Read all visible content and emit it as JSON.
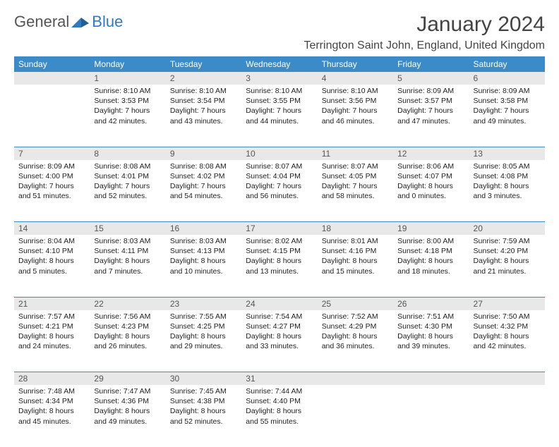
{
  "logo": {
    "text1": "General",
    "text2": "Blue"
  },
  "title": "January 2024",
  "location": "Terrington Saint John, England, United Kingdom",
  "colors": {
    "header_bg": "#3b8bc9",
    "header_text": "#ffffff",
    "daynum_bg": "#e8e8e8",
    "rule": "#3b8bc9",
    "logo_blue": "#2f7ac0"
  },
  "day_headers": [
    "Sunday",
    "Monday",
    "Tuesday",
    "Wednesday",
    "Thursday",
    "Friday",
    "Saturday"
  ],
  "weeks": [
    [
      {
        "num": "",
        "lines": []
      },
      {
        "num": "1",
        "lines": [
          "Sunrise: 8:10 AM",
          "Sunset: 3:53 PM",
          "Daylight: 7 hours and 42 minutes."
        ]
      },
      {
        "num": "2",
        "lines": [
          "Sunrise: 8:10 AM",
          "Sunset: 3:54 PM",
          "Daylight: 7 hours and 43 minutes."
        ]
      },
      {
        "num": "3",
        "lines": [
          "Sunrise: 8:10 AM",
          "Sunset: 3:55 PM",
          "Daylight: 7 hours and 44 minutes."
        ]
      },
      {
        "num": "4",
        "lines": [
          "Sunrise: 8:10 AM",
          "Sunset: 3:56 PM",
          "Daylight: 7 hours and 46 minutes."
        ]
      },
      {
        "num": "5",
        "lines": [
          "Sunrise: 8:09 AM",
          "Sunset: 3:57 PM",
          "Daylight: 7 hours and 47 minutes."
        ]
      },
      {
        "num": "6",
        "lines": [
          "Sunrise: 8:09 AM",
          "Sunset: 3:58 PM",
          "Daylight: 7 hours and 49 minutes."
        ]
      }
    ],
    [
      {
        "num": "7",
        "lines": [
          "Sunrise: 8:09 AM",
          "Sunset: 4:00 PM",
          "Daylight: 7 hours and 51 minutes."
        ]
      },
      {
        "num": "8",
        "lines": [
          "Sunrise: 8:08 AM",
          "Sunset: 4:01 PM",
          "Daylight: 7 hours and 52 minutes."
        ]
      },
      {
        "num": "9",
        "lines": [
          "Sunrise: 8:08 AM",
          "Sunset: 4:02 PM",
          "Daylight: 7 hours and 54 minutes."
        ]
      },
      {
        "num": "10",
        "lines": [
          "Sunrise: 8:07 AM",
          "Sunset: 4:04 PM",
          "Daylight: 7 hours and 56 minutes."
        ]
      },
      {
        "num": "11",
        "lines": [
          "Sunrise: 8:07 AM",
          "Sunset: 4:05 PM",
          "Daylight: 7 hours and 58 minutes."
        ]
      },
      {
        "num": "12",
        "lines": [
          "Sunrise: 8:06 AM",
          "Sunset: 4:07 PM",
          "Daylight: 8 hours and 0 minutes."
        ]
      },
      {
        "num": "13",
        "lines": [
          "Sunrise: 8:05 AM",
          "Sunset: 4:08 PM",
          "Daylight: 8 hours and 3 minutes."
        ]
      }
    ],
    [
      {
        "num": "14",
        "lines": [
          "Sunrise: 8:04 AM",
          "Sunset: 4:10 PM",
          "Daylight: 8 hours and 5 minutes."
        ]
      },
      {
        "num": "15",
        "lines": [
          "Sunrise: 8:03 AM",
          "Sunset: 4:11 PM",
          "Daylight: 8 hours and 7 minutes."
        ]
      },
      {
        "num": "16",
        "lines": [
          "Sunrise: 8:03 AM",
          "Sunset: 4:13 PM",
          "Daylight: 8 hours and 10 minutes."
        ]
      },
      {
        "num": "17",
        "lines": [
          "Sunrise: 8:02 AM",
          "Sunset: 4:15 PM",
          "Daylight: 8 hours and 13 minutes."
        ]
      },
      {
        "num": "18",
        "lines": [
          "Sunrise: 8:01 AM",
          "Sunset: 4:16 PM",
          "Daylight: 8 hours and 15 minutes."
        ]
      },
      {
        "num": "19",
        "lines": [
          "Sunrise: 8:00 AM",
          "Sunset: 4:18 PM",
          "Daylight: 8 hours and 18 minutes."
        ]
      },
      {
        "num": "20",
        "lines": [
          "Sunrise: 7:59 AM",
          "Sunset: 4:20 PM",
          "Daylight: 8 hours and 21 minutes."
        ]
      }
    ],
    [
      {
        "num": "21",
        "lines": [
          "Sunrise: 7:57 AM",
          "Sunset: 4:21 PM",
          "Daylight: 8 hours and 24 minutes."
        ]
      },
      {
        "num": "22",
        "lines": [
          "Sunrise: 7:56 AM",
          "Sunset: 4:23 PM",
          "Daylight: 8 hours and 26 minutes."
        ]
      },
      {
        "num": "23",
        "lines": [
          "Sunrise: 7:55 AM",
          "Sunset: 4:25 PM",
          "Daylight: 8 hours and 29 minutes."
        ]
      },
      {
        "num": "24",
        "lines": [
          "Sunrise: 7:54 AM",
          "Sunset: 4:27 PM",
          "Daylight: 8 hours and 33 minutes."
        ]
      },
      {
        "num": "25",
        "lines": [
          "Sunrise: 7:52 AM",
          "Sunset: 4:29 PM",
          "Daylight: 8 hours and 36 minutes."
        ]
      },
      {
        "num": "26",
        "lines": [
          "Sunrise: 7:51 AM",
          "Sunset: 4:30 PM",
          "Daylight: 8 hours and 39 minutes."
        ]
      },
      {
        "num": "27",
        "lines": [
          "Sunrise: 7:50 AM",
          "Sunset: 4:32 PM",
          "Daylight: 8 hours and 42 minutes."
        ]
      }
    ],
    [
      {
        "num": "28",
        "lines": [
          "Sunrise: 7:48 AM",
          "Sunset: 4:34 PM",
          "Daylight: 8 hours and 45 minutes."
        ]
      },
      {
        "num": "29",
        "lines": [
          "Sunrise: 7:47 AM",
          "Sunset: 4:36 PM",
          "Daylight: 8 hours and 49 minutes."
        ]
      },
      {
        "num": "30",
        "lines": [
          "Sunrise: 7:45 AM",
          "Sunset: 4:38 PM",
          "Daylight: 8 hours and 52 minutes."
        ]
      },
      {
        "num": "31",
        "lines": [
          "Sunrise: 7:44 AM",
          "Sunset: 4:40 PM",
          "Daylight: 8 hours and 55 minutes."
        ]
      },
      {
        "num": "",
        "lines": []
      },
      {
        "num": "",
        "lines": []
      },
      {
        "num": "",
        "lines": []
      }
    ]
  ]
}
